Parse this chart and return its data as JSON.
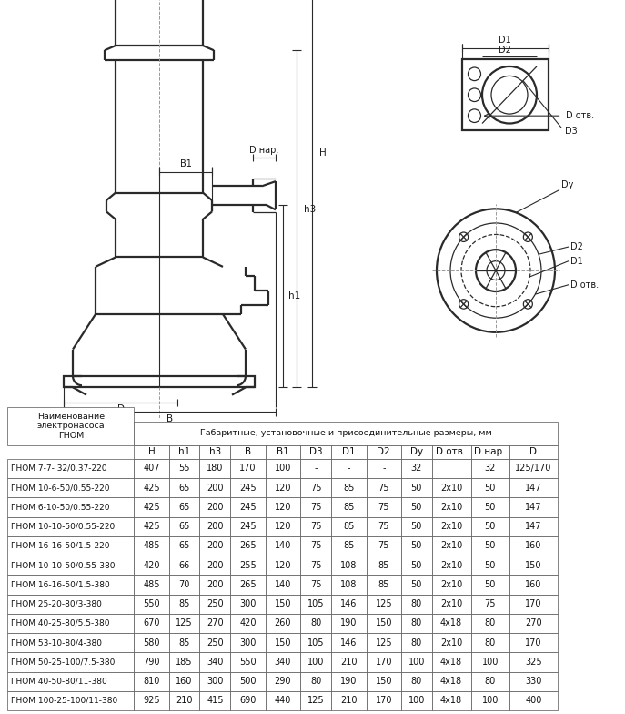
{
  "table_header_main": "Габаритные, установочные и присоединительные размеры, мм",
  "table_col0_header": "Наименование\nэлектронасоса\nГНОМ",
  "table_sub_headers": [
    "H",
    "h1",
    "h3",
    "B",
    "B1",
    "D3",
    "D1",
    "D2",
    "Dy",
    "D отв.",
    "D нар.",
    "D"
  ],
  "table_rows": [
    [
      "ГНОМ 7-7- 32/0.37-220",
      "407",
      "55",
      "180",
      "170",
      "100",
      "-",
      "-",
      "-",
      "32",
      "",
      "32",
      "125/170"
    ],
    [
      "ГНОМ 10-6-50/0.55-220",
      "425",
      "65",
      "200",
      "245",
      "120",
      "75",
      "85",
      "75",
      "50",
      "2х10",
      "50",
      "147"
    ],
    [
      "ГНОМ 6-10-50/0.55-220",
      "425",
      "65",
      "200",
      "245",
      "120",
      "75",
      "85",
      "75",
      "50",
      "2х10",
      "50",
      "147"
    ],
    [
      "ГНОМ 10-10-50/0.55-220",
      "425",
      "65",
      "200",
      "245",
      "120",
      "75",
      "85",
      "75",
      "50",
      "2х10",
      "50",
      "147"
    ],
    [
      "ГНОМ 16-16-50/1.5-220",
      "485",
      "65",
      "200",
      "265",
      "140",
      "75",
      "85",
      "75",
      "50",
      "2х10",
      "50",
      "160"
    ],
    [
      "ГНОМ 10-10-50/0.55-380",
      "420",
      "66",
      "200",
      "255",
      "120",
      "75",
      "108",
      "85",
      "50",
      "2х10",
      "50",
      "150"
    ],
    [
      "ГНОМ 16-16-50/1.5-380",
      "485",
      "70",
      "200",
      "265",
      "140",
      "75",
      "108",
      "85",
      "50",
      "2х10",
      "50",
      "160"
    ],
    [
      "ГНОМ 25-20-80/3-380",
      "550",
      "85",
      "250",
      "300",
      "150",
      "105",
      "146",
      "125",
      "80",
      "2х10",
      "75",
      "170"
    ],
    [
      "ГНОМ 40-25-80/5.5-380",
      "670",
      "125",
      "270",
      "420",
      "260",
      "80",
      "190",
      "150",
      "80",
      "4х18",
      "80",
      "270"
    ],
    [
      "ГНОМ 53-10-80/4-380",
      "580",
      "85",
      "250",
      "300",
      "150",
      "105",
      "146",
      "125",
      "80",
      "2х10",
      "80",
      "170"
    ],
    [
      "ГНОМ 50-25-100/7.5-380",
      "790",
      "185",
      "340",
      "550",
      "340",
      "100",
      "210",
      "170",
      "100",
      "4х18",
      "100",
      "325"
    ],
    [
      "ГНОМ 40-50-80/11-380",
      "810",
      "160",
      "300",
      "500",
      "290",
      "80",
      "190",
      "150",
      "80",
      "4х18",
      "80",
      "330"
    ],
    [
      "ГНОМ 100-25-100/11-380",
      "925",
      "210",
      "415",
      "690",
      "440",
      "125",
      "210",
      "170",
      "100",
      "4х18",
      "100",
      "400"
    ]
  ]
}
